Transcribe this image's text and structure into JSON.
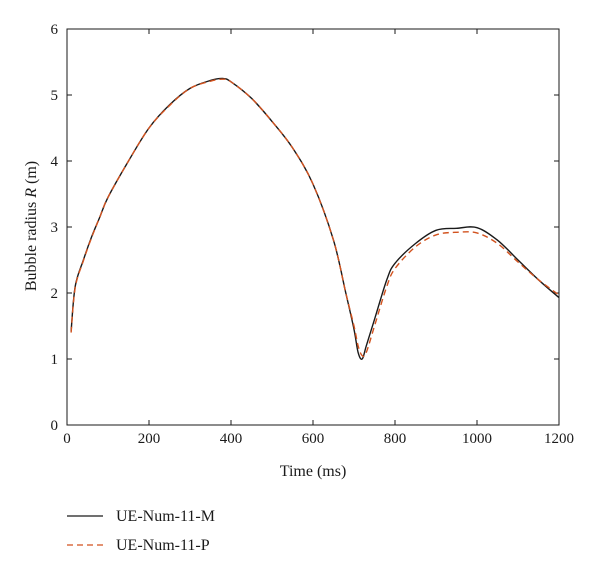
{
  "chart_data": {
    "type": "line",
    "xlabel": "Time (ms)",
    "ylabel_main": "Bubble radius ",
    "ylabel_var": "R",
    "ylabel_unit": " (m)",
    "xlim": [
      0,
      1200
    ],
    "ylim": [
      0,
      6
    ],
    "xticks": [
      0,
      200,
      400,
      600,
      800,
      1000,
      1200
    ],
    "yticks": [
      0,
      1,
      2,
      3,
      4,
      5,
      6
    ],
    "grid": false,
    "legend_position": "bottom-left, below plot",
    "series": [
      {
        "name": "UE-Num-11-M",
        "color": "#1a1a1a",
        "dash": "solid",
        "x": [
          10,
          20,
          40,
          60,
          80,
          100,
          150,
          200,
          250,
          300,
          350,
          380,
          400,
          450,
          500,
          550,
          600,
          650,
          680,
          700,
          710,
          720,
          730,
          750,
          780,
          800,
          850,
          900,
          950,
          1000,
          1050,
          1100,
          1150,
          1200
        ],
        "y": [
          1.42,
          2.1,
          2.5,
          2.85,
          3.15,
          3.45,
          4.0,
          4.5,
          4.85,
          5.1,
          5.22,
          5.25,
          5.2,
          4.95,
          4.6,
          4.2,
          3.65,
          2.8,
          2.0,
          1.45,
          1.1,
          1.0,
          1.2,
          1.6,
          2.2,
          2.45,
          2.75,
          2.95,
          2.98,
          2.99,
          2.8,
          2.5,
          2.2,
          1.93
        ]
      },
      {
        "name": "UE-Num-11-P",
        "color": "#d2521e",
        "dash": "dashed",
        "x": [
          10,
          20,
          40,
          60,
          80,
          100,
          150,
          200,
          250,
          300,
          350,
          380,
          400,
          450,
          500,
          550,
          600,
          650,
          680,
          700,
          710,
          720,
          730,
          750,
          780,
          800,
          850,
          900,
          950,
          1000,
          1050,
          1100,
          1150,
          1200
        ],
        "y": [
          1.4,
          2.08,
          2.49,
          2.84,
          3.15,
          3.45,
          4.0,
          4.5,
          4.84,
          5.1,
          5.21,
          5.24,
          5.2,
          4.95,
          4.6,
          4.2,
          3.65,
          2.8,
          2.0,
          1.5,
          1.2,
          1.05,
          1.1,
          1.5,
          2.1,
          2.37,
          2.7,
          2.88,
          2.92,
          2.91,
          2.75,
          2.47,
          2.2,
          1.97
        ]
      }
    ]
  }
}
